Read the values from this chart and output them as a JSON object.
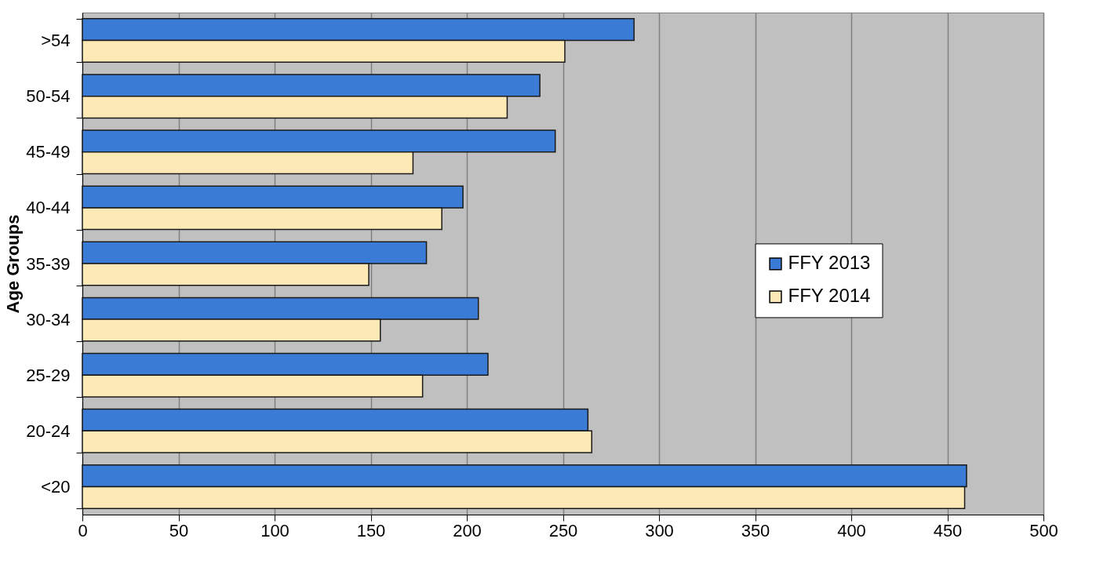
{
  "chart_data": {
    "type": "bar",
    "orientation": "horizontal",
    "ylabel": "Age Groups",
    "categories": [
      ">54",
      "50-54",
      "45-49",
      "40-44",
      "35-39",
      "30-34",
      "25-29",
      "20-24",
      "<20"
    ],
    "series": [
      {
        "name": "FFY 2013",
        "color": "#3a7bd5",
        "values": [
          287,
          238,
          246,
          198,
          179,
          206,
          211,
          263,
          460
        ]
      },
      {
        "name": "FFY 2014",
        "color": "#fde9b5",
        "values": [
          251,
          221,
          172,
          187,
          149,
          155,
          177,
          265,
          459
        ]
      }
    ],
    "xlim": [
      0,
      500
    ],
    "xticks": [
      0,
      50,
      100,
      150,
      200,
      250,
      300,
      350,
      400,
      450,
      500
    ],
    "grid": "x",
    "legend": "right"
  }
}
